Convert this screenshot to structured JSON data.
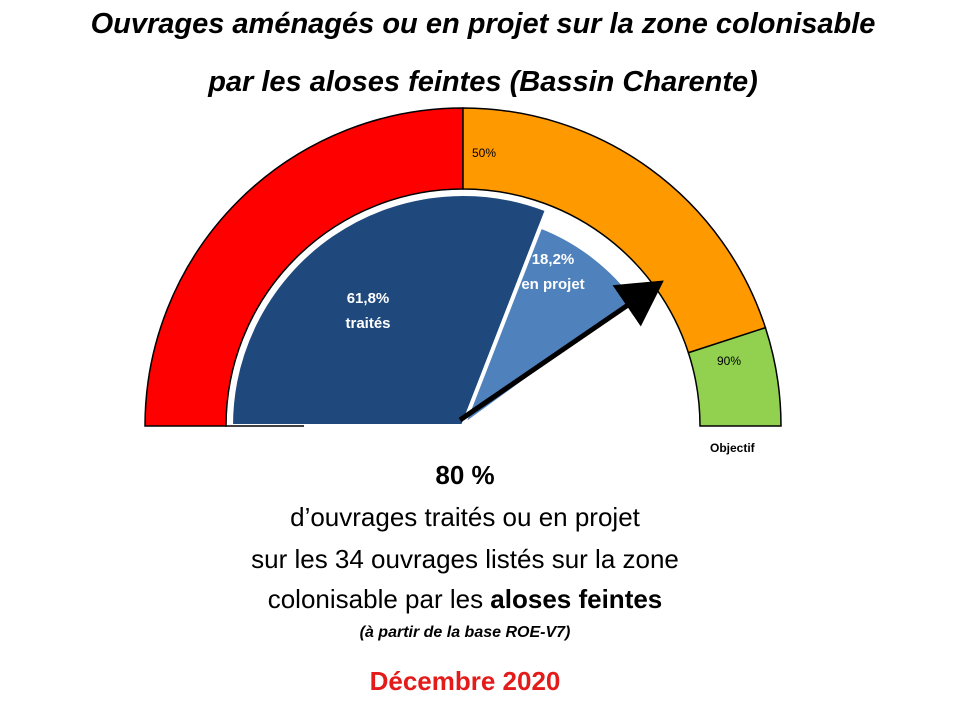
{
  "title": {
    "line1": "Ouvrages aménagés ou en projet sur la zone colonisable",
    "line2": "par les aloses feintes (Bassin Charente)"
  },
  "chart_data": {
    "type": "gauge",
    "scale": [
      0,
      100
    ],
    "zones": [
      {
        "from": 0,
        "to": 50,
        "color": "#ff0000"
      },
      {
        "from": 50,
        "to": 90,
        "color": "#ff9900",
        "label": "50%"
      },
      {
        "from": 90,
        "to": 100,
        "color": "#92d050",
        "label": "90%",
        "caption": "Objectif"
      }
    ],
    "segments": [
      {
        "value": 61.8,
        "value_label": "61,8%",
        "name": "traités",
        "color": "#1f497d"
      },
      {
        "value": 18.2,
        "value_label": "18,2%",
        "name": "en projet",
        "color": "#4f81bd"
      }
    ],
    "needle": 80
  },
  "summary": {
    "percent": "80 %",
    "line1": "d’ouvrages traités ou en projet",
    "line2": "sur les 34 ouvrages listés sur la zone",
    "line3_prefix": "colonisable par les ",
    "line3_bold": "aloses feintes",
    "source": "(à partir de la base ROE-V7)",
    "date": "Décembre 2020"
  }
}
